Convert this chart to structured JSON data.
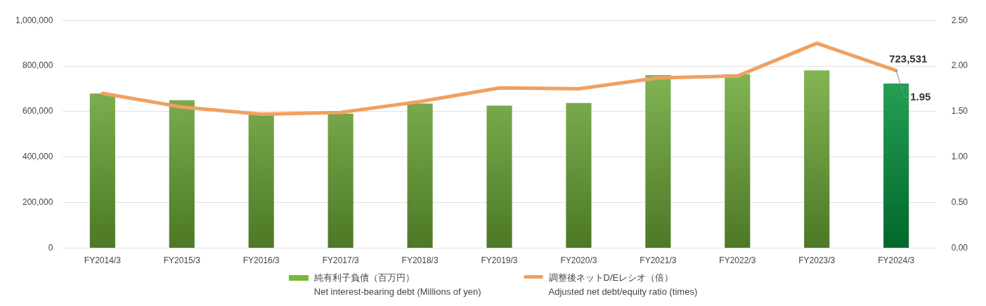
{
  "chart_data": {
    "type": "bar",
    "categories": [
      "FY2014/3",
      "FY2015/3",
      "FY2016/3",
      "FY2017/3",
      "FY2018/3",
      "FY2019/3",
      "FY2020/3",
      "FY2021/3",
      "FY2022/3",
      "FY2023/3",
      "FY2024/3"
    ],
    "series": [
      {
        "name": "純有利子負債（百万円）\nNet interest-bearing debt (Millions of yen)",
        "color": "#76b83a",
        "colors": [
          "#76b83a",
          "#76b83a",
          "#76b83a",
          "#76b83a",
          "#76b83a",
          "#76b83a",
          "#76b83a",
          "#76b83a",
          "#76b83a",
          "#76b83a",
          "#00a040"
        ],
        "values": [
          679000,
          650000,
          588000,
          591000,
          635000,
          626000,
          638000,
          760000,
          764000,
          781000,
          723531
        ],
        "value_labels": [
          null,
          null,
          null,
          null,
          null,
          null,
          null,
          null,
          null,
          null,
          "723,531"
        ]
      },
      {
        "name": "調整後ネットD/Eレシオ（倍）\nAdjusted net debt/equity ratio (times)",
        "type": "line",
        "axis": "y2",
        "color": "#f0a060",
        "values": [
          1.7,
          1.55,
          1.47,
          1.49,
          1.61,
          1.76,
          1.75,
          1.87,
          1.89,
          2.25,
          1.95
        ],
        "value_labels": [
          null,
          null,
          null,
          null,
          null,
          null,
          null,
          null,
          null,
          null,
          "1.95"
        ]
      }
    ],
    "ylim": [
      0,
      1000000
    ],
    "yticks": [
      0,
      {
        "value": 200000,
        "label": "200,000"
      },
      {
        "value": 400000,
        "label": "400,000"
      },
      {
        "value": 600000,
        "label": "600,000"
      },
      {
        "value": 800000,
        "label": "800,000"
      },
      {
        "value": 1000000,
        "label": "1,000,000"
      }
    ],
    "y2lim": [
      0,
      2.5
    ],
    "y2ticks": [
      {
        "value": 0,
        "label": "0.00"
      },
      {
        "value": 0.5,
        "label": "0.50"
      },
      {
        "value": 1,
        "label": "1.00"
      },
      {
        "value": 1.5,
        "label": "1.50"
      },
      {
        "value": 2,
        "label": "2.00"
      },
      {
        "value": 2.5,
        "label": "2.50"
      }
    ],
    "grid": "y",
    "legend": "bottom",
    "marker": "none",
    "line_style": "solid"
  }
}
